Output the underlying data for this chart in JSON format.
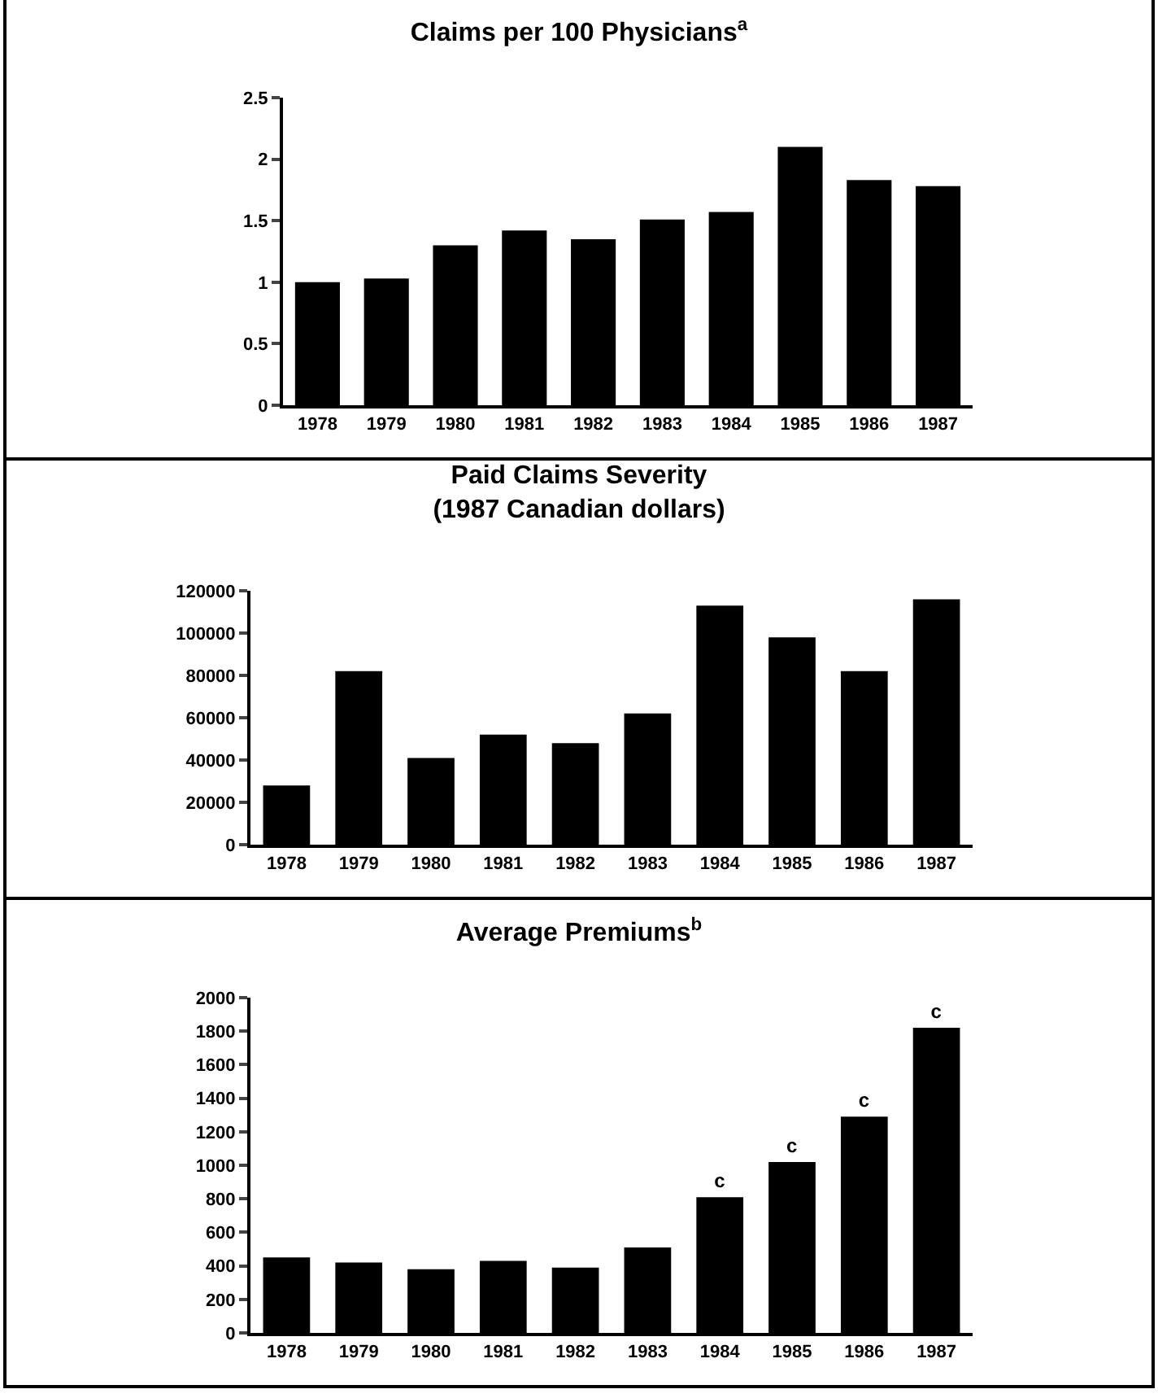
{
  "chart_data": [
    {
      "type": "bar",
      "title": "Claims per 100 Physicians$^{a}$",
      "categories": [
        "1978",
        "1979",
        "1980",
        "1981",
        "1982",
        "1983",
        "1984",
        "1985",
        "1986",
        "1987"
      ],
      "series": [
        {
          "color": "#000000",
          "values": [
            1.0,
            1.03,
            1.3,
            1.42,
            1.35,
            1.51,
            1.57,
            2.1,
            1.83,
            1.78
          ]
        }
      ],
      "ylim": [
        0,
        2.5
      ],
      "yticks": [
        0,
        0.5,
        1,
        1.5,
        2,
        2.5
      ],
      "grid": false
    },
    {
      "type": "bar",
      "title": "Paid Claims Severity",
      "subtitle": "(1987 Canadian dollars)",
      "categories": [
        "1978",
        "1979",
        "1980",
        "1981",
        "1982",
        "1983",
        "1984",
        "1985",
        "1986",
        "1987"
      ],
      "series": [
        {
          "color": "#000000",
          "values": [
            28000,
            82000,
            41000,
            52000,
            48000,
            62000,
            113000,
            98000,
            82000,
            116000
          ]
        }
      ],
      "ylim": [
        0,
        120000
      ],
      "yticks": [
        0,
        20000,
        40000,
        60000,
        80000,
        100000,
        120000
      ],
      "grid": false
    },
    {
      "type": "bar",
      "title": "Average Premiums$^{b}$",
      "categories": [
        "1978",
        "1979",
        "1980",
        "1981",
        "1982",
        "1983",
        "1984",
        "1985",
        "1986",
        "1987"
      ],
      "series": [
        {
          "color": "#000000",
          "values": [
            450,
            420,
            380,
            430,
            390,
            510,
            810,
            1020,
            1290,
            1820
          ],
          "value_labels": [
            null,
            null,
            null,
            null,
            null,
            null,
            "c",
            "c",
            "c",
            "c"
          ]
        }
      ],
      "ylim": [
        0,
        2000
      ],
      "yticks": [
        0,
        200,
        400,
        600,
        800,
        1000,
        1200,
        1400,
        1600,
        1800,
        2000
      ],
      "grid": false
    }
  ]
}
